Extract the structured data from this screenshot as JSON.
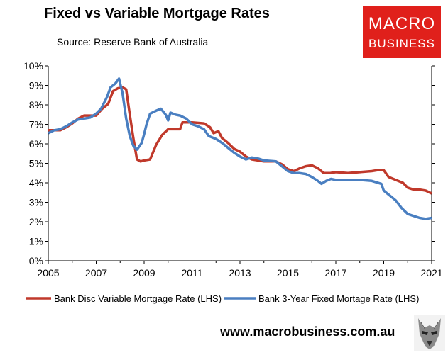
{
  "header": {
    "title": "Fixed vs Variable Mortgage Rates",
    "subtitle": "Source: Reserve Bank of Australia"
  },
  "logo": {
    "line1": "MACRO",
    "line2": "BUSINESS"
  },
  "footer": {
    "url": "www.macrobusiness.com.au",
    "mascot_icon": "wolf-icon"
  },
  "colors": {
    "variable": "#c0392b",
    "fixed": "#4a7fc1"
  },
  "chart_data": {
    "type": "line",
    "title": "Fixed vs Variable Mortgage Rates",
    "xlim": [
      2005,
      2021
    ],
    "ylim": [
      0,
      10
    ],
    "x_ticks": [
      "2005",
      "2007",
      "2009",
      "2011",
      "2013",
      "2015",
      "2017",
      "2019",
      "2021"
    ],
    "y_ticks": [
      "0%",
      "1%",
      "2%",
      "3%",
      "4%",
      "5%",
      "6%",
      "7%",
      "8%",
      "9%",
      "10%"
    ],
    "grid": false,
    "legend_position": "bottom",
    "series": [
      {
        "name": "Bank Disc Variable Mortgage Rate (LHS)",
        "color": "#c0392b",
        "points": [
          [
            2005.0,
            6.7
          ],
          [
            2005.5,
            6.7
          ],
          [
            2005.75,
            6.85
          ],
          [
            2006.0,
            7.05
          ],
          [
            2006.25,
            7.3
          ],
          [
            2006.5,
            7.45
          ],
          [
            2007.0,
            7.45
          ],
          [
            2007.25,
            7.8
          ],
          [
            2007.5,
            8.05
          ],
          [
            2007.7,
            8.7
          ],
          [
            2007.9,
            8.85
          ],
          [
            2008.1,
            8.9
          ],
          [
            2008.25,
            8.8
          ],
          [
            2008.4,
            7.5
          ],
          [
            2008.55,
            6.3
          ],
          [
            2008.7,
            5.2
          ],
          [
            2008.85,
            5.1
          ],
          [
            2009.0,
            5.15
          ],
          [
            2009.25,
            5.2
          ],
          [
            2009.5,
            5.95
          ],
          [
            2009.75,
            6.45
          ],
          [
            2010.0,
            6.75
          ],
          [
            2010.25,
            6.75
          ],
          [
            2010.5,
            6.75
          ],
          [
            2010.6,
            7.1
          ],
          [
            2011.0,
            7.1
          ],
          [
            2011.5,
            7.05
          ],
          [
            2011.75,
            6.85
          ],
          [
            2011.9,
            6.55
          ],
          [
            2012.1,
            6.65
          ],
          [
            2012.25,
            6.3
          ],
          [
            2012.5,
            6.05
          ],
          [
            2012.75,
            5.75
          ],
          [
            2013.0,
            5.6
          ],
          [
            2013.25,
            5.35
          ],
          [
            2013.5,
            5.2
          ],
          [
            2013.75,
            5.15
          ],
          [
            2014.0,
            5.1
          ],
          [
            2014.25,
            5.1
          ],
          [
            2014.5,
            5.1
          ],
          [
            2014.75,
            4.95
          ],
          [
            2015.0,
            4.7
          ],
          [
            2015.25,
            4.6
          ],
          [
            2015.5,
            4.75
          ],
          [
            2015.75,
            4.85
          ],
          [
            2016.0,
            4.9
          ],
          [
            2016.25,
            4.75
          ],
          [
            2016.5,
            4.5
          ],
          [
            2016.75,
            4.5
          ],
          [
            2017.0,
            4.55
          ],
          [
            2017.5,
            4.5
          ],
          [
            2018.0,
            4.55
          ],
          [
            2018.5,
            4.6
          ],
          [
            2018.75,
            4.65
          ],
          [
            2019.0,
            4.65
          ],
          [
            2019.2,
            4.3
          ],
          [
            2019.5,
            4.15
          ],
          [
            2019.8,
            4.0
          ],
          [
            2020.0,
            3.75
          ],
          [
            2020.25,
            3.65
          ],
          [
            2020.5,
            3.65
          ],
          [
            2020.75,
            3.6
          ],
          [
            2021.0,
            3.45
          ]
        ]
      },
      {
        "name": "Bank 3-Year Fixed Mortage Rate (LHS)",
        "color": "#4a7fc1",
        "points": [
          [
            2005.0,
            6.55
          ],
          [
            2005.25,
            6.7
          ],
          [
            2005.5,
            6.75
          ],
          [
            2005.75,
            6.9
          ],
          [
            2006.0,
            7.1
          ],
          [
            2006.25,
            7.25
          ],
          [
            2006.5,
            7.3
          ],
          [
            2006.75,
            7.35
          ],
          [
            2007.0,
            7.55
          ],
          [
            2007.2,
            7.8
          ],
          [
            2007.45,
            8.4
          ],
          [
            2007.6,
            8.9
          ],
          [
            2007.8,
            9.1
          ],
          [
            2007.95,
            9.35
          ],
          [
            2008.1,
            8.6
          ],
          [
            2008.25,
            7.3
          ],
          [
            2008.4,
            6.4
          ],
          [
            2008.55,
            5.9
          ],
          [
            2008.7,
            5.7
          ],
          [
            2008.9,
            6.05
          ],
          [
            2009.0,
            6.5
          ],
          [
            2009.1,
            7.0
          ],
          [
            2009.25,
            7.55
          ],
          [
            2009.5,
            7.7
          ],
          [
            2009.7,
            7.8
          ],
          [
            2009.9,
            7.5
          ],
          [
            2010.0,
            7.2
          ],
          [
            2010.1,
            7.6
          ],
          [
            2010.3,
            7.5
          ],
          [
            2010.5,
            7.45
          ],
          [
            2010.75,
            7.3
          ],
          [
            2011.0,
            7.0
          ],
          [
            2011.25,
            6.9
          ],
          [
            2011.5,
            6.75
          ],
          [
            2011.7,
            6.4
          ],
          [
            2012.0,
            6.25
          ],
          [
            2012.25,
            6.05
          ],
          [
            2012.5,
            5.8
          ],
          [
            2012.75,
            5.55
          ],
          [
            2013.0,
            5.35
          ],
          [
            2013.25,
            5.2
          ],
          [
            2013.5,
            5.3
          ],
          [
            2013.75,
            5.25
          ],
          [
            2014.0,
            5.15
          ],
          [
            2014.5,
            5.1
          ],
          [
            2014.75,
            4.85
          ],
          [
            2015.0,
            4.6
          ],
          [
            2015.25,
            4.5
          ],
          [
            2015.5,
            4.5
          ],
          [
            2015.75,
            4.45
          ],
          [
            2016.0,
            4.3
          ],
          [
            2016.25,
            4.1
          ],
          [
            2016.4,
            3.95
          ],
          [
            2016.6,
            4.1
          ],
          [
            2016.8,
            4.2
          ],
          [
            2017.0,
            4.15
          ],
          [
            2017.5,
            4.15
          ],
          [
            2018.0,
            4.15
          ],
          [
            2018.5,
            4.1
          ],
          [
            2018.9,
            3.95
          ],
          [
            2019.0,
            3.6
          ],
          [
            2019.25,
            3.35
          ],
          [
            2019.5,
            3.1
          ],
          [
            2019.75,
            2.7
          ],
          [
            2020.0,
            2.4
          ],
          [
            2020.25,
            2.3
          ],
          [
            2020.5,
            2.2
          ],
          [
            2020.75,
            2.15
          ],
          [
            2021.0,
            2.2
          ]
        ]
      }
    ]
  }
}
